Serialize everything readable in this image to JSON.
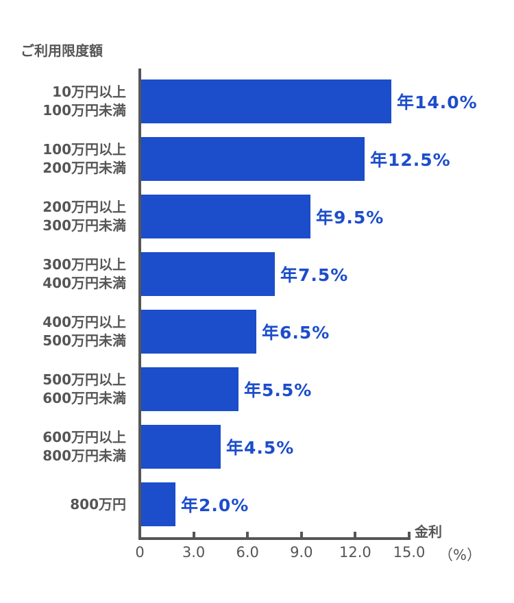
{
  "chart_data": {
    "type": "bar",
    "orientation": "horizontal",
    "title": "",
    "ylabel": "ご利用限度額",
    "xlabel": "金利",
    "x_unit": "（%）",
    "xlim": [
      0,
      15.0
    ],
    "x_ticks": [
      "0",
      "3.0",
      "6.0",
      "9.0",
      "12.0",
      "15.0"
    ],
    "grid": false,
    "legend": null,
    "bar_color": "#1c4dcb",
    "value_label_color": "#1c4dcb",
    "text_color": "#555555",
    "categories": [
      {
        "line1": "10万円以上",
        "line2": "100万円未満"
      },
      {
        "line1": "100万円以上",
        "line2": "200万円未満"
      },
      {
        "line1": "200万円以上",
        "line2": "300万円未満"
      },
      {
        "line1": "300万円以上",
        "line2": "400万円未満"
      },
      {
        "line1": "400万円以上",
        "line2": "500万円未満"
      },
      {
        "line1": "500万円以上",
        "line2": "600万円未満"
      },
      {
        "line1": "600万円以上",
        "line2": "800万円未満"
      },
      {
        "line1": "800万円",
        "line2": ""
      }
    ],
    "values": [
      14.0,
      12.5,
      9.5,
      7.5,
      6.5,
      5.5,
      4.5,
      2.0
    ],
    "value_labels": [
      "年14.0%",
      "年12.5%",
      "年9.5%",
      "年7.5%",
      "年6.5%",
      "年5.5%",
      "年4.5%",
      "年2.0%"
    ]
  }
}
